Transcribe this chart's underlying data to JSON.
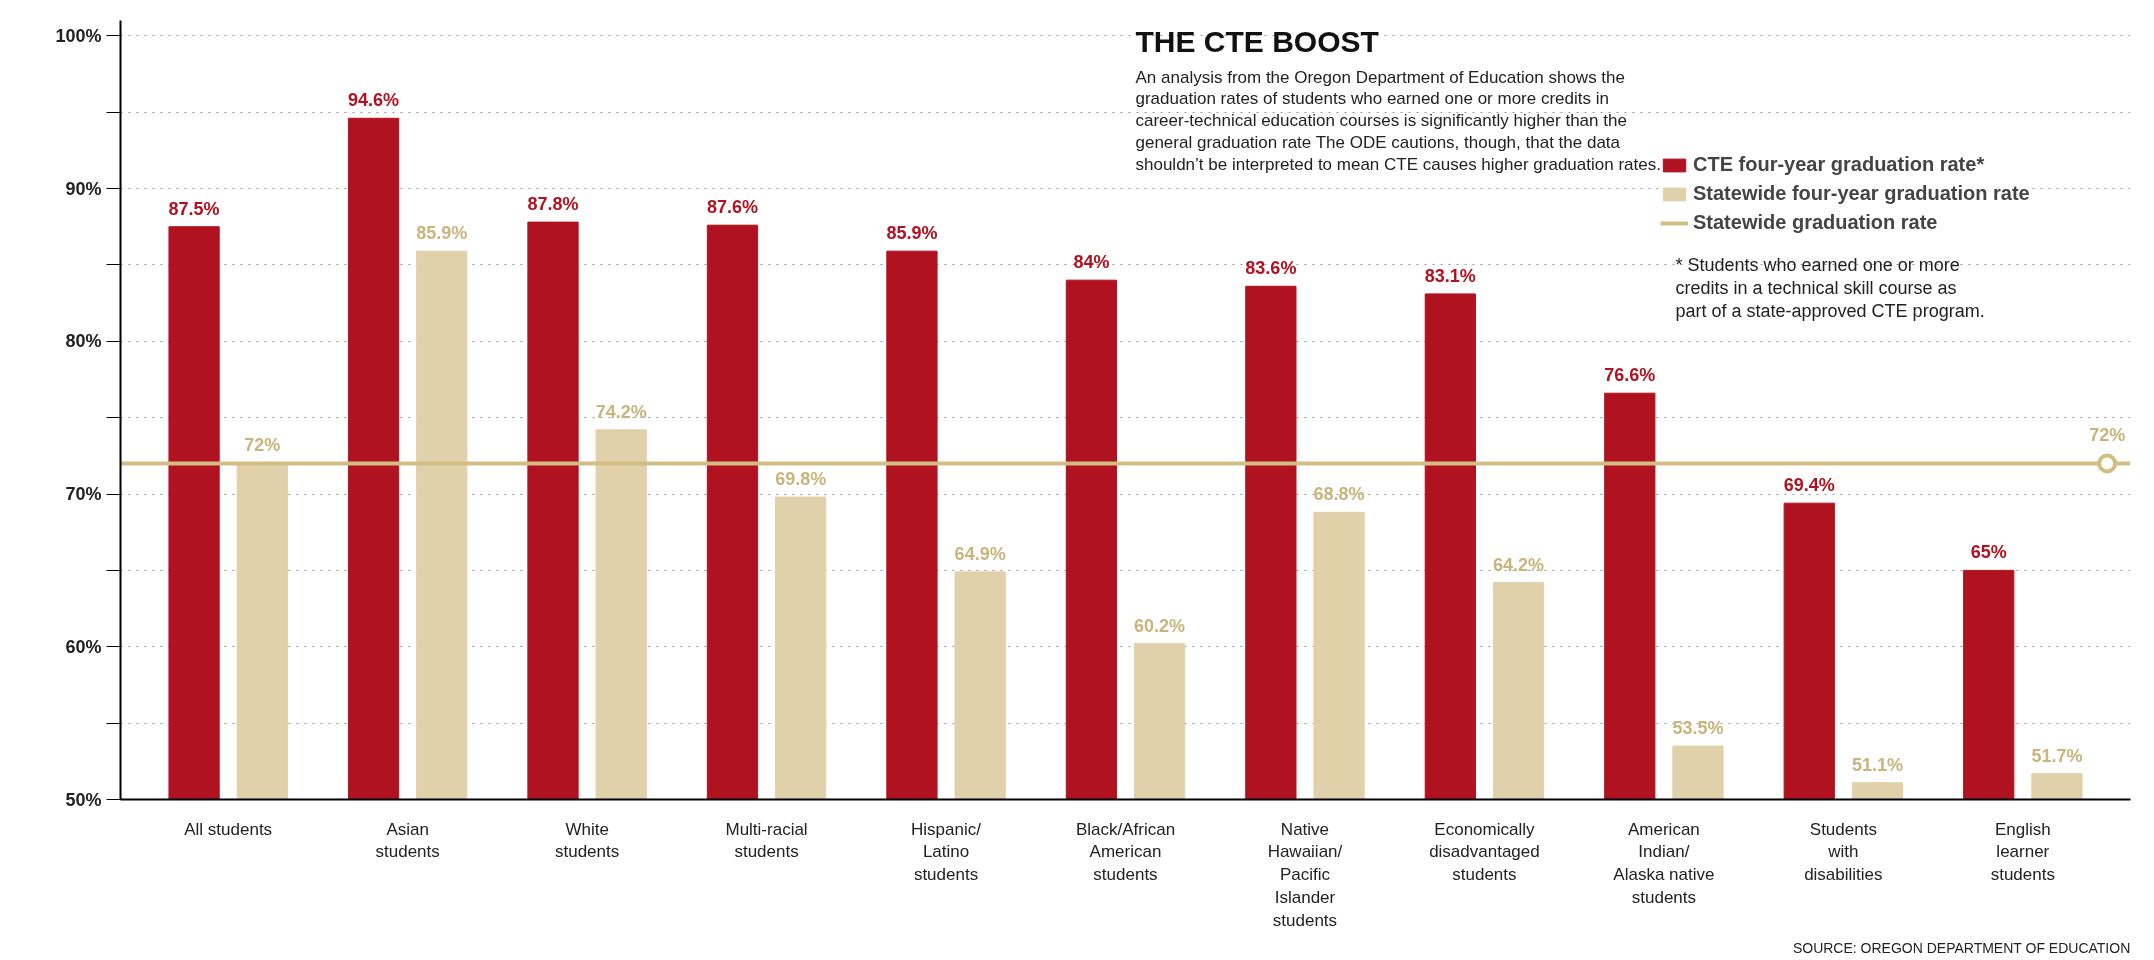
{
  "chart_data": {
    "type": "bar",
    "title": "THE CTE BOOST",
    "subtitle": "An analysis from the Oregon Department of Education shows the\ngraduation rates of students who earned one or more credits in\ncareer-technical education courses is significantly higher than the\ngeneral graduation rate The ODE cautions, though, that the data\nshouldn’t be interpreted to mean CTE causes higher graduation rates.",
    "categories": [
      "All students",
      "Asian\nstudents",
      "White\nstudents",
      "Multi-racial\nstudents",
      "Hispanic/\nLatino\nstudents",
      "Black/African\nAmerican\nstudents",
      "Native\nHawaiian/\nPacific\nIslander\nstudents",
      "Economically\ndisadvantaged\nstudents",
      "American\nIndian/\nAlaska native\nstudents",
      "Students\nwith\ndisabilities",
      "English\nlearner\nstudents"
    ],
    "series": [
      {
        "name": "CTE four-year graduation rate*",
        "color": "#b0121f",
        "values": [
          87.5,
          94.6,
          87.8,
          87.6,
          85.9,
          84,
          83.6,
          83.1,
          76.6,
          69.4,
          65
        ],
        "value_labels": [
          "87.5%",
          "94.6%",
          "87.8%",
          "87.6%",
          "85.9%",
          "84%",
          "83.6%",
          "83.1%",
          "76.6%",
          "69.4%",
          "65%"
        ]
      },
      {
        "name": "Statewide four-year graduation rate",
        "color": "#e0d1aa",
        "values": [
          72,
          85.9,
          74.2,
          69.8,
          64.9,
          60.2,
          68.8,
          64.2,
          53.5,
          51.1,
          51.7
        ],
        "value_labels": [
          "72%",
          "85.9%",
          "74.2%",
          "69.8%",
          "64.9%",
          "60.2%",
          "68.8%",
          "64.2%",
          "53.5%",
          "51.1%",
          "51.7%"
        ]
      }
    ],
    "ylim": [
      50,
      101
    ],
    "yticks": [
      {
        "value": 50,
        "label": "50%"
      },
      {
        "value": 55,
        "label": null
      },
      {
        "value": 60,
        "label": "60%"
      },
      {
        "value": 65,
        "label": null
      },
      {
        "value": 70,
        "label": "70%"
      },
      {
        "value": 75,
        "label": null
      },
      {
        "value": 80,
        "label": "80%"
      },
      {
        "value": 85,
        "label": null
      },
      {
        "value": 90,
        "label": "90%"
      },
      {
        "value": 95,
        "label": null
      },
      {
        "value": 100,
        "label": "100%"
      }
    ],
    "ref_lines": [
      {
        "axis": "y",
        "value": 72,
        "label": "Statewide graduation rate",
        "color": "#d2bd85",
        "line_style": "solid"
      }
    ],
    "annotations": [
      {
        "text": "72%",
        "y": 72
      },
      "* Students who earned one or more\ncredits in a technical skill course as\npart of a state-approved CTE program.",
      "SOURCE: OREGON DEPARTMENT OF EDUCATION"
    ],
    "grid": "y",
    "legend": "top right"
  }
}
